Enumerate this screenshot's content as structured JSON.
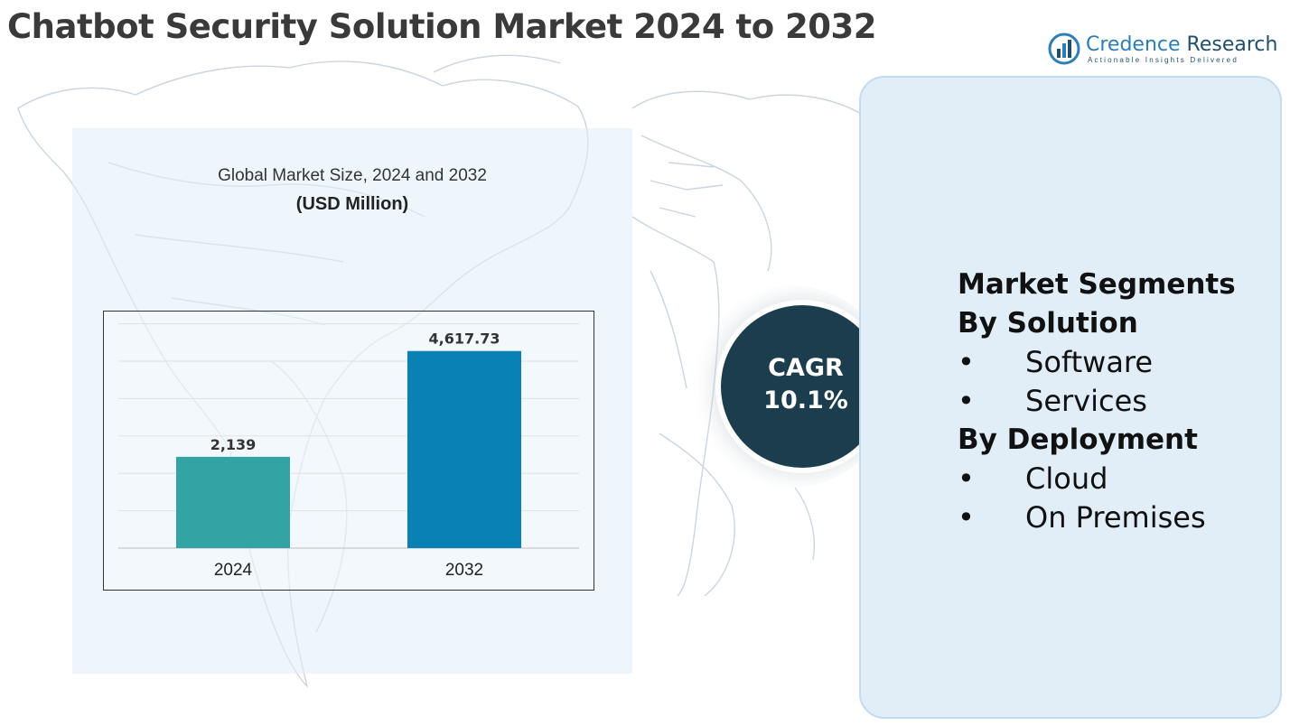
{
  "title": "Chatbot Security Solution Market 2024 to 2032",
  "logo": {
    "name_part1": "Credence",
    "name_part2": " Research",
    "tagline": "Actionable Insights Delivered"
  },
  "colors": {
    "bar_2024": "#33a3a3",
    "bar_2032": "#0a81b5",
    "cagr_circle": "#1c3d4d",
    "card_bg": "#e1eef8"
  },
  "chart_data": {
    "type": "bar",
    "title": "Global Market Size, 2024 and 2032",
    "unit": "(USD Million)",
    "categories": [
      "2024",
      "2032"
    ],
    "values": [
      2139,
      4617.73
    ],
    "value_labels": [
      "2,139",
      "4,617.73"
    ],
    "ylim": [
      0,
      5500
    ],
    "grid": true,
    "legend": "none"
  },
  "cagr": {
    "label": "CAGR",
    "value": "10.1%"
  },
  "segments": {
    "heading": "Market Segments",
    "groups": [
      {
        "title": "By Solution",
        "items": [
          "Software",
          "Services"
        ]
      },
      {
        "title": "By Deployment",
        "items": [
          "Cloud",
          "On Premises"
        ]
      }
    ],
    "bullet": "•"
  },
  "icons": {
    "logo": "bar-chart-logo-icon",
    "background": "world-map-outline"
  }
}
